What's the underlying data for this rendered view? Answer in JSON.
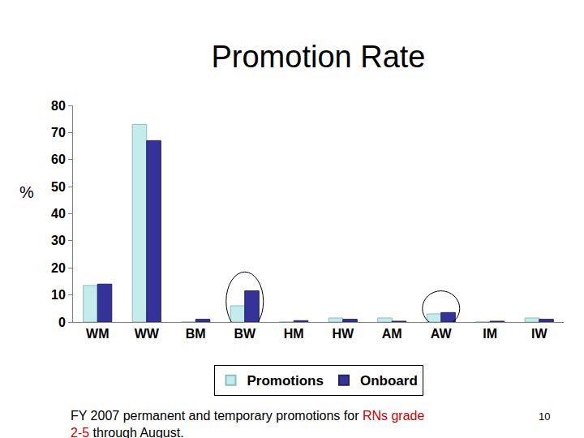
{
  "chart_data": {
    "type": "bar",
    "title": "Promotion Rate",
    "y_label": "%",
    "categories": [
      "WM",
      "WW",
      "BM",
      "BW",
      "HM",
      "HW",
      "AM",
      "AW",
      "IM",
      "IW"
    ],
    "series": [
      {
        "name": "Promotions",
        "color": "#c4ecec",
        "values": [
          13.5,
          73,
          0,
          6,
          0,
          1.5,
          1.5,
          3,
          0,
          1.5
        ]
      },
      {
        "name": "Onboard",
        "color": "#333399",
        "values": [
          14,
          67,
          1,
          11.5,
          0.5,
          1,
          0.3,
          3.5,
          0.3,
          1
        ]
      }
    ],
    "ylim": [
      0,
      80
    ],
    "yticks": [
      0,
      10,
      20,
      30,
      40,
      50,
      60,
      70,
      80
    ],
    "grid": false,
    "legend": "bottom",
    "footnote": [
      [
        {
          "text": "FY 2007 permanent and temporary promotions for "
        },
        {
          "text": "RNs grade",
          "color": "#cc0000"
        }
      ],
      [
        {
          "text": "2-5",
          "color": "#cc0000"
        },
        {
          "text": " through August."
        }
      ]
    ],
    "page_number": "10"
  }
}
